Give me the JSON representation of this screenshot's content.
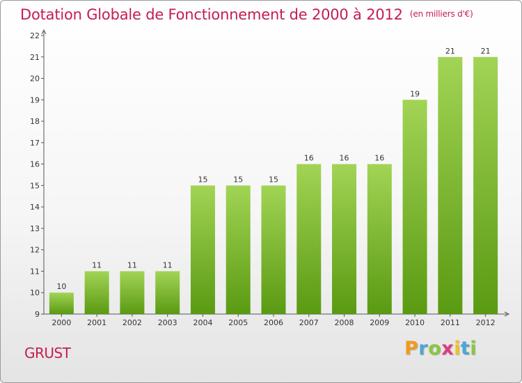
{
  "chart_data": {
    "type": "bar",
    "title": "Dotation Globale de Fonctionnement de 2000 à 2012",
    "unit_note": "(en milliers d'€)",
    "categories": [
      "2000",
      "2001",
      "2002",
      "2003",
      "2004",
      "2005",
      "2006",
      "2007",
      "2008",
      "2009",
      "2010",
      "2011",
      "2012"
    ],
    "values": [
      10,
      11,
      11,
      11,
      15,
      15,
      15,
      16,
      16,
      16,
      19,
      21,
      21
    ],
    "ylim": [
      9,
      22
    ],
    "yticks": [
      9,
      10,
      11,
      12,
      13,
      14,
      15,
      16,
      17,
      18,
      19,
      20,
      21,
      22
    ],
    "grid": false,
    "bar_colors": {
      "top": "#a2d455",
      "bottom": "#5a9a12"
    }
  },
  "commune": "GRUST",
  "logo": {
    "letters": [
      "P",
      "r",
      "o",
      "x",
      "i",
      "t",
      "i"
    ],
    "colors": [
      "#f29a1c",
      "#4aa6d6",
      "#8cc63f",
      "#e03a84",
      "#f2c21c",
      "#4aa6d6",
      "#8cc63f"
    ]
  }
}
